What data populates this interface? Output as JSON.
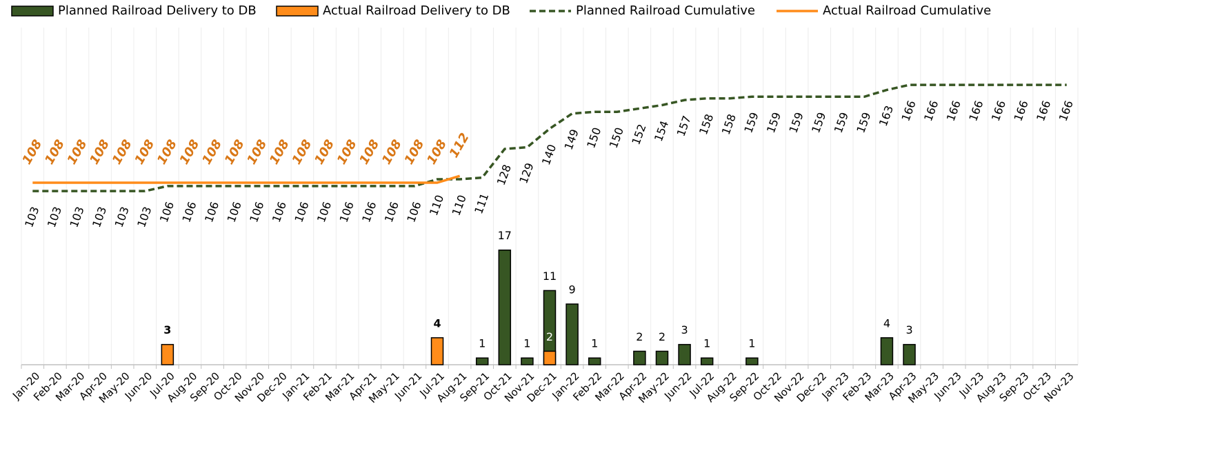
{
  "chart_data": {
    "type": "bar",
    "categories": [
      "Jan-20",
      "Feb-20",
      "Mar-20",
      "Apr-20",
      "May-20",
      "Jun-20",
      "Jul-20",
      "Aug-20",
      "Sep-20",
      "Oct-20",
      "Nov-20",
      "Dec-20",
      "Jan-21",
      "Feb-21",
      "Mar-21",
      "Apr-21",
      "May-21",
      "Jun-21",
      "Jul-21",
      "Aug-21",
      "Sep-21",
      "Oct-21",
      "Nov-21",
      "Dec-21",
      "Jan-22",
      "Feb-22",
      "Mar-22",
      "Apr-22",
      "May-22",
      "Jun-22",
      "Jul-22",
      "Aug-22",
      "Sep-22",
      "Oct-22",
      "Nov-22",
      "Dec-22",
      "Jan-23",
      "Feb-23",
      "Mar-23",
      "Apr-23",
      "May-23",
      "Jun-23",
      "Jul-23",
      "Aug-23",
      "Sep-23",
      "Oct-23",
      "Nov-23"
    ],
    "ylim": [
      0,
      50
    ],
    "y2lim": [
      0,
      200
    ],
    "legend": "top",
    "series": [
      {
        "name": "Planned Railroad Delivery to DB",
        "type": "bar",
        "color": "#375623",
        "values": [
          null,
          null,
          null,
          null,
          null,
          null,
          null,
          null,
          null,
          null,
          null,
          null,
          null,
          null,
          null,
          null,
          null,
          null,
          null,
          null,
          1,
          17,
          1,
          11,
          9,
          1,
          null,
          2,
          2,
          3,
          1,
          null,
          1,
          null,
          null,
          null,
          null,
          null,
          4,
          3,
          null,
          null,
          null,
          null,
          null,
          null,
          null
        ]
      },
      {
        "name": "Actual Railroad Delivery to DB",
        "type": "bar",
        "color": "#ff8c1a",
        "values": [
          null,
          null,
          null,
          null,
          null,
          null,
          3,
          null,
          null,
          null,
          null,
          null,
          null,
          null,
          null,
          null,
          null,
          null,
          4,
          null,
          null,
          null,
          null,
          2,
          null,
          null,
          null,
          null,
          null,
          null,
          null,
          null,
          null,
          null,
          null,
          null,
          null,
          null,
          null,
          null,
          null,
          null,
          null,
          null,
          null,
          null,
          null
        ]
      },
      {
        "name": "Planned Railroad Cumulative",
        "type": "line",
        "axis": "y2",
        "color": "#375623",
        "dashed": true,
        "values": [
          103,
          103,
          103,
          103,
          103,
          103,
          106,
          106,
          106,
          106,
          106,
          106,
          106,
          106,
          106,
          106,
          106,
          106,
          110,
          110,
          111,
          128,
          129,
          140,
          149,
          150,
          150,
          152,
          154,
          157,
          158,
          158,
          159,
          159,
          159,
          159,
          159,
          159,
          163,
          166,
          166,
          166,
          166,
          166,
          166,
          166,
          166
        ]
      },
      {
        "name": "Actual Railroad Cumulative",
        "type": "line",
        "axis": "y2",
        "color": "#ff8c1a",
        "dashed": false,
        "values": [
          108,
          108,
          108,
          108,
          108,
          108,
          108,
          108,
          108,
          108,
          108,
          108,
          108,
          108,
          108,
          108,
          108,
          108,
          108,
          112,
          null,
          null,
          null,
          null,
          null,
          null,
          null,
          null,
          null,
          null,
          null,
          null,
          null,
          null,
          null,
          null,
          null,
          null,
          null,
          null,
          null,
          null,
          null,
          null,
          null,
          null,
          null
        ]
      }
    ]
  }
}
